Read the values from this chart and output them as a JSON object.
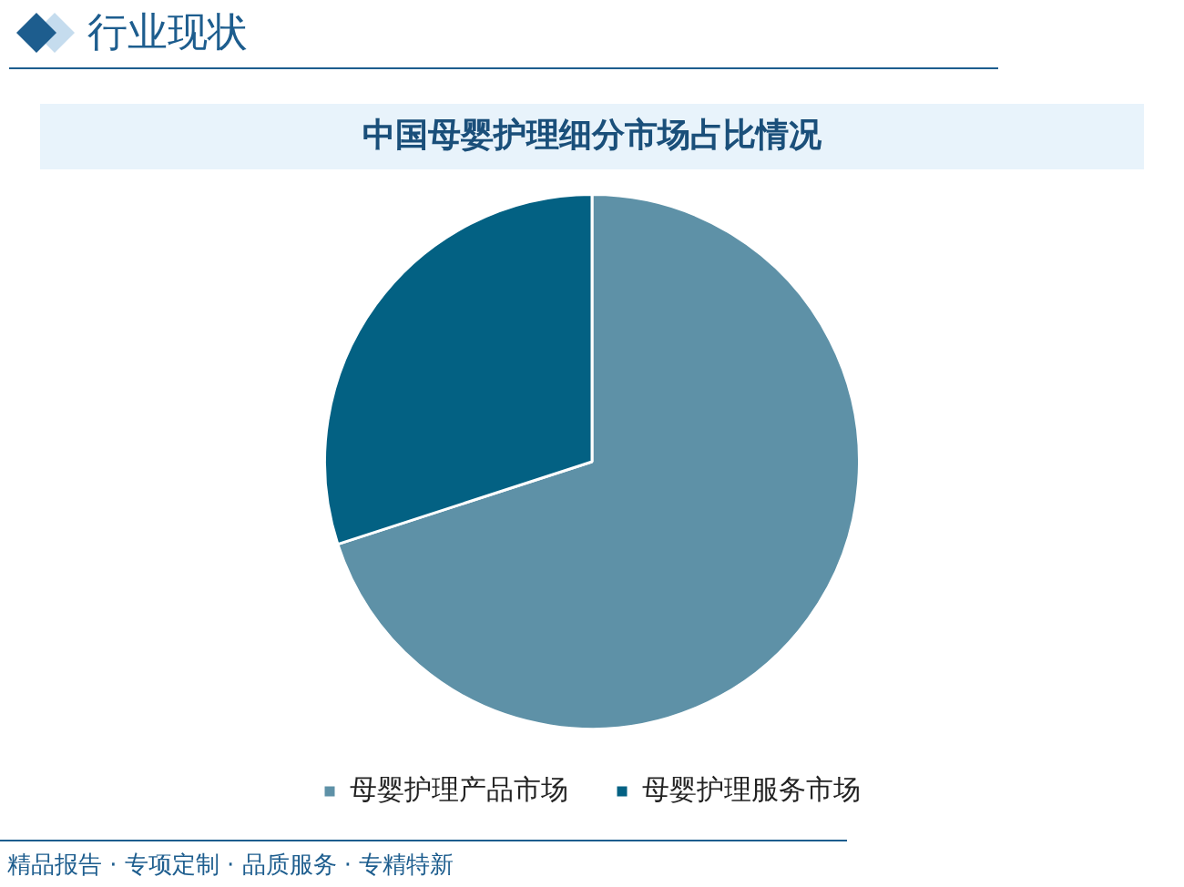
{
  "chart_data": {
    "type": "pie",
    "title": "中国母婴护理细分市场占比情况",
    "categories": [
      "母婴护理产品市场",
      "母婴护理服务市场"
    ],
    "values": [
      70,
      30
    ],
    "colors": [
      "#5e91a7",
      "#036183"
    ],
    "legend": "bottom",
    "annotations": [
      "行业现状",
      "精品报告 · 专项定制 · 品质服务 · 专精特新"
    ]
  }
}
